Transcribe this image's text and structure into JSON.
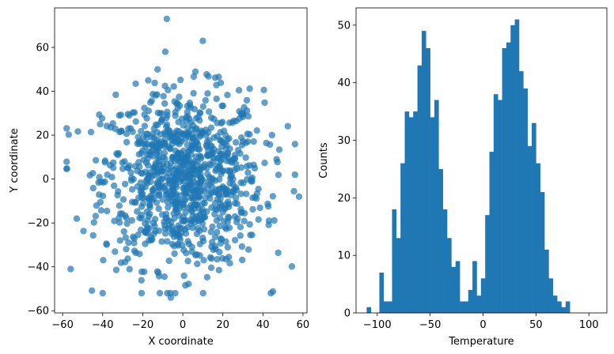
{
  "colors": {
    "series": "#1f77b4",
    "axes": "#000000",
    "background": "#ffffff"
  },
  "chart_data": [
    {
      "type": "scatter",
      "title": "",
      "xlabel": "X coordinate",
      "ylabel": "Y coordinate",
      "xlim": [
        -64,
        62
      ],
      "ylim": [
        -61,
        78
      ],
      "xticks": [
        -60,
        -40,
        -20,
        0,
        20,
        40,
        60
      ],
      "yticks": [
        -60,
        -40,
        -20,
        0,
        20,
        40,
        60
      ],
      "marker_alpha": 0.7,
      "n_points_estimate": 1000,
      "distribution": "isotropic 2D gaussian, mean approx (0, 0), std approx 20",
      "outliers": [
        [
          -8,
          73
        ],
        [
          10,
          63
        ],
        [
          -56,
          -41
        ],
        [
          -40,
          -52
        ],
        [
          -6,
          -54
        ],
        [
          44,
          -52
        ],
        [
          56,
          2
        ],
        [
          58,
          -8
        ]
      ],
      "points": []
    },
    {
      "type": "bar",
      "subtype": "histogram",
      "title": "",
      "xlabel": "Temperature",
      "ylabel": "Counts",
      "xlim": [
        -120,
        117
      ],
      "ylim": [
        0,
        53
      ],
      "xticks": [
        -100,
        -50,
        0,
        50,
        100
      ],
      "yticks": [
        0,
        10,
        20,
        30,
        40,
        50
      ],
      "bin_start": -110,
      "bin_width": 4,
      "counts": [
        1,
        0,
        0,
        7,
        2,
        2,
        18,
        13,
        26,
        35,
        34,
        35,
        43,
        49,
        46,
        34,
        37,
        25,
        18,
        13,
        8,
        9,
        2,
        2,
        4,
        9,
        3,
        6,
        17,
        28,
        38,
        37,
        46,
        47,
        50,
        51,
        42,
        39,
        29,
        33,
        26,
        21,
        11,
        6,
        3,
        2,
        1,
        2
      ]
    }
  ]
}
